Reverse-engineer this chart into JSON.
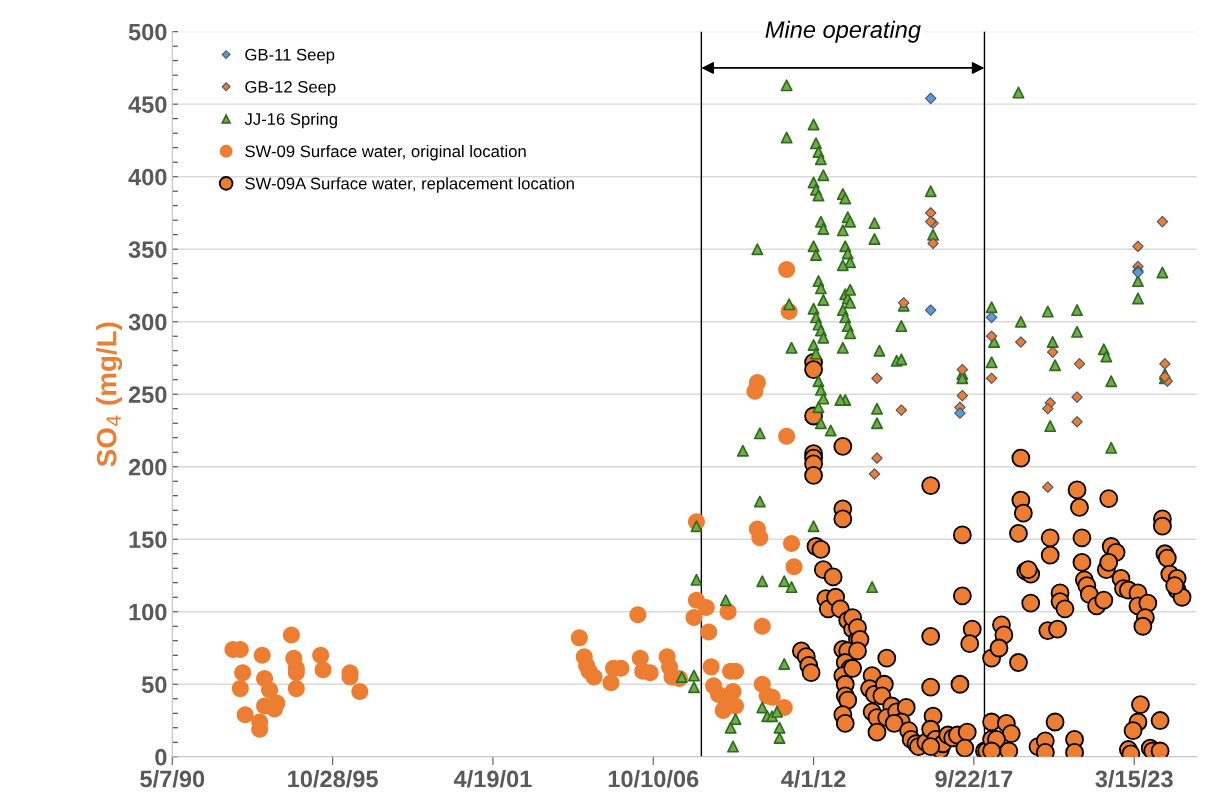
{
  "chart_data": {
    "type": "scatter",
    "ylabel": "SO$_{4}$ (mg/L)",
    "xlim": [
      "1990-05-07",
      "2025-05-01"
    ],
    "xticks": [
      {
        "value": "1990-05-07",
        "label": "5/7/90"
      },
      {
        "value": "1995-10-28",
        "label": "10/28/95"
      },
      {
        "value": "2001-04-19",
        "label": "4/19/01"
      },
      {
        "value": "2006-10-10",
        "label": "10/10/06"
      },
      {
        "value": "2012-04-01",
        "label": "4/1/12"
      },
      {
        "value": "2017-09-22",
        "label": "9/22/17"
      },
      {
        "value": "2023-03-15",
        "label": "3/15/23"
      }
    ],
    "ylim": [
      0,
      500
    ],
    "yticks": [
      0,
      50,
      100,
      150,
      200,
      250,
      300,
      350,
      400,
      450,
      500
    ],
    "grid": "y",
    "legend": "top left",
    "ref_lines": [
      {
        "axis": "x",
        "value": "2008-06",
        "color": "#000000"
      },
      {
        "axis": "x",
        "value": "2018-02",
        "color": "#000000"
      }
    ],
    "annotations": [
      "Mine operating"
    ],
    "series": [
      {
        "name": "GB-11 Seep",
        "color": "#5b9bd5",
        "marker": "diamond",
        "x": [
          "2016-04",
          "2016-04",
          "2017-04",
          "2018-05",
          "2023-05"
        ],
        "values": [
          454,
          308,
          237,
          303,
          334
        ]
      },
      {
        "name": "GB-12 Seep",
        "color": "#ed7d31",
        "marker": "diamond",
        "x": [
          "2016-04",
          "2016-05",
          "2016-04",
          "2016-05",
          "2015-05",
          "2014-06",
          "2015-04",
          "2014-06",
          "2014-05",
          "2017-05",
          "2017-05",
          "2017-04",
          "2018-05",
          "2018-05",
          "2019-05",
          "2020-06",
          "2020-05",
          "2020-04",
          "2020-04",
          "2021-05",
          "2021-04",
          "2021-04",
          "2023-05",
          "2023-05",
          "2023-05",
          "2024-03",
          "2024-04",
          "2024-05",
          "2024-04"
        ],
        "values": [
          375,
          368,
          369,
          354,
          313,
          261,
          239,
          206,
          195,
          267,
          249,
          241,
          290,
          261,
          286,
          279,
          244,
          240,
          186,
          271,
          248,
          231,
          352,
          338,
          335,
          369,
          271,
          259,
          262
        ]
      },
      {
        "name": "JJ-16 Spring",
        "color": "#70ad47",
        "marker": "triangle",
        "x": [
          "2007-10",
          "2008-03",
          "2008-03",
          "2008-04",
          "2008-04",
          "2011-05",
          "2011-05",
          "2010-05",
          "2011-06",
          "2011-07",
          "2010-06",
          "2009-11",
          "2010-06",
          "2010-07",
          "2011-04",
          "2011-07",
          "2011-04",
          "2009-04",
          "2009-06",
          "2009-07",
          "2009-08",
          "2010-07",
          "2010-09",
          "2010-11",
          "2011-01",
          "2011-02",
          "2011-02",
          "2012-04",
          "2012-05",
          "2012-06",
          "2012-07",
          "2012-08",
          "2012-04",
          "2012-05",
          "2012-06",
          "2012-07",
          "2012-08",
          "2012-04",
          "2012-05",
          "2012-06",
          "2012-07",
          "2012-08",
          "2012-04",
          "2012-05",
          "2012-06",
          "2012-07",
          "2012-08",
          "2012-04",
          "2012-05",
          "2012-06",
          "2012-07",
          "2012-08",
          "2012-06",
          "2012-07",
          "2012-04",
          "2013-04",
          "2013-05",
          "2013-06",
          "2013-07",
          "2013-04",
          "2013-05",
          "2013-06",
          "2013-07",
          "2013-04",
          "2013-05",
          "2013-06",
          "2013-07",
          "2013-04",
          "2013-05",
          "2013-06",
          "2013-07",
          "2013-04",
          "2013-05",
          "2013-07",
          "2012-11",
          "2013-03",
          "2014-05",
          "2014-05",
          "2014-07",
          "2014-06",
          "2014-06",
          "2015-05",
          "2015-04",
          "2015-02",
          "2015-04",
          "2016-04",
          "2016-05",
          "2017-05",
          "2017-05",
          "2018-05",
          "2018-06",
          "2018-05",
          "2014-04",
          "2019-04",
          "2019-05",
          "2020-04",
          "2020-06",
          "2020-07",
          "2020-05",
          "2021-04",
          "2021-04",
          "2022-03",
          "2022-04",
          "2022-06",
          "2022-06",
          "2023-05",
          "2023-05",
          "2024-03",
          "2024-04",
          "2024-04"
        ],
        "values": [
          55,
          56,
          48,
          122,
          159,
          463,
          427,
          350,
          312,
          282,
          223,
          211,
          176,
          121,
          121,
          117,
          64,
          108,
          20,
          7,
          26,
          34,
          28,
          28,
          31,
          20,
          13,
          436,
          423,
          417,
          412,
          401,
          396,
          391,
          387,
          369,
          364,
          352,
          346,
          328,
          323,
          315,
          309,
          303,
          298,
          294,
          289,
          284,
          278,
          259,
          253,
          247,
          241,
          230,
          159,
          388,
          385,
          372,
          369,
          363,
          352,
          347,
          341,
          339,
          319,
          316,
          313,
          308,
          303,
          297,
          292,
          282,
          246,
          322,
          225,
          246,
          368,
          357,
          280,
          240,
          230,
          311,
          297,
          273,
          274,
          390,
          360,
          264,
          261,
          310,
          286,
          272,
          117,
          458,
          300,
          307,
          286,
          270,
          228,
          308,
          293,
          281,
          276,
          259,
          213,
          328,
          316,
          334,
          264,
          261
        ]
      },
      {
        "name": "SW-09 Surface water, original location",
        "color": "#ed7d31",
        "marker": "circle",
        "x": [
          "1992-06",
          "1992-09",
          "1992-10",
          "1992-09",
          "1992-11",
          "1993-06",
          "1993-07",
          "1993-05",
          "1993-05",
          "1993-09",
          "1993-07",
          "1993-11",
          "1993-12",
          "1994-06",
          "1994-07",
          "1994-08",
          "1994-08",
          "1994-08",
          "1995-06",
          "1995-07",
          "1996-06",
          "1996-06",
          "1996-10",
          "2004-04",
          "2004-06",
          "2004-07",
          "2004-08",
          "2004-10",
          "2005-05",
          "2005-06",
          "2005-09",
          "2006-04",
          "2006-05",
          "2006-06",
          "2006-09",
          "2007-04",
          "2007-05",
          "2007-06",
          "2007-09",
          "2008-04",
          "2008-04",
          "2008-03",
          "2011-05",
          "2011-06",
          "2010-05",
          "2010-04",
          "2011-05",
          "2010-05",
          "2010-06",
          "2011-07",
          "2011-08",
          "2008-08",
          "2008-09",
          "2009-05",
          "2010-07",
          "2008-10",
          "2009-06",
          "2009-08",
          "2008-11",
          "2009-01",
          "2009-04",
          "2009-03",
          "2009-07",
          "2009-08",
          "2010-07",
          "2010-09",
          "2010-11",
          "2011-04"
        ],
        "values": [
          74,
          74,
          58,
          47,
          29,
          70,
          54,
          24,
          19,
          46,
          35,
          33,
          37,
          84,
          68,
          61,
          58,
          47,
          70,
          60,
          58,
          55,
          45,
          82,
          69,
          63,
          59,
          55,
          51,
          61,
          61,
          98,
          68,
          59,
          58,
          69,
          62,
          55,
          54,
          162,
          108,
          96,
          336,
          307,
          258,
          252,
          221,
          157,
          151,
          147,
          131,
          103,
          86,
          100,
          90,
          62,
          59,
          59,
          49,
          43,
          39,
          32,
          45,
          35,
          50,
          42,
          41,
          34
        ]
      },
      {
        "name": "SW-09A Surface water, replacement location",
        "color": "#ed7d31",
        "marker": "circle_outlined",
        "x": [
          "2012-04",
          "2012-04",
          "2012-04",
          "2012-04",
          "2012-04",
          "2012-04",
          "2012-04",
          "2013-04",
          "2013-04",
          "2013-04",
          "2012-05",
          "2012-07",
          "2012-08",
          "2012-12",
          "2012-09",
          "2012-10",
          "2013-01",
          "2013-03",
          "2013-06",
          "2013-08",
          "2013-10",
          "2011-11",
          "2012-01",
          "2012-02",
          "2012-03",
          "2013-04",
          "2013-06",
          "2013-05",
          "2013-07",
          "2013-04",
          "2013-05",
          "2013-05",
          "2013-06",
          "2013-04",
          "2013-05",
          "2016-04",
          "2017-05",
          "2017-05",
          "2016-04",
          "2016-04",
          "2017-04",
          "2017-09",
          "2017-08",
          "2018-05",
          "2013-08",
          "2013-10",
          "2013-11",
          "2013-10",
          "2013-08",
          "2014-10",
          "2014-04",
          "2014-03",
          "2014-05",
          "2014-09",
          "2014-08",
          "2014-04",
          "2014-06",
          "2014-12",
          "2014-10",
          "2015-02",
          "2015-06",
          "2015-04",
          "2015-01",
          "2015-07",
          "2015-08",
          "2015-10",
          "2015-11",
          "2014-06",
          "2016-02",
          "2016-05",
          "2016-04",
          "2016-06",
          "2016-08",
          "2016-09",
          "2016-11",
          "2017-01",
          "2017-03",
          "2017-07",
          "2017-06",
          "2016-04",
          "2018-02",
          "2018-03",
          "2018-05",
          "2018-05",
          "2019-05",
          "2019-05",
          "2019-06",
          "2019-04",
          "2018-09",
          "2018-10",
          "2018-08",
          "2019-04",
          "2019-07",
          "2019-09",
          "2019-08",
          "2019-09",
          "2020-05",
          "2020-05",
          "2020-04",
          "2020-08",
          "2020-09",
          "2020-09",
          "2020-11",
          "2021-04",
          "2021-05",
          "2021-06",
          "2021-06",
          "2021-07",
          "2021-08",
          "2021-09",
          "2021-12",
          "2022-03",
          "2022-05",
          "2022-06",
          "2022-08",
          "2022-04",
          "2022-05",
          "2022-10",
          "2022-11",
          "2023-01",
          "2023-05",
          "2023-05",
          "2023-09",
          "2023-08",
          "2023-07",
          "2024-03",
          "2024-03",
          "2024-04",
          "2024-05",
          "2024-06",
          "2024-09",
          "2024-09",
          "2024-11",
          "2024-08",
          "2018-11",
          "2019-01",
          "2018-07",
          "2018-05",
          "2018-12",
          "2019-12",
          "2020-03",
          "2020-03",
          "2020-07",
          "2021-03",
          "2021-03",
          "2023-06",
          "2023-05",
          "2023-03",
          "2023-01",
          "2023-02",
          "2024-02",
          "2023-10",
          "2023-11",
          "2024-02"
        ],
        "values": [
          272,
          267,
          235,
          209,
          206,
          202,
          194,
          214,
          171,
          164,
          145,
          143,
          129,
          124,
          109,
          102,
          110,
          102,
          94,
          88,
          81,
          73,
          69,
          63,
          58,
          74,
          73,
          65,
          61,
          56,
          50,
          42,
          39,
          29,
          23,
          187,
          153,
          111,
          83,
          48,
          50,
          88,
          78,
          68,
          96,
          89,
          81,
          73,
          61,
          68,
          56,
          47,
          43,
          50,
          42,
          31,
          27,
          35,
          27,
          31,
          34,
          24,
          23,
          18,
          12,
          9,
          7,
          17,
          10,
          28,
          19,
          12,
          5,
          9,
          15,
          13,
          15,
          17,
          6,
          7,
          4,
          4,
          24,
          12,
          206,
          177,
          168,
          154,
          91,
          84,
          75,
          65,
          128,
          126,
          129,
          106,
          151,
          139,
          87,
          88,
          113,
          107,
          102,
          184,
          172,
          151,
          134,
          122,
          118,
          112,
          104,
          108,
          178,
          145,
          141,
          129,
          134,
          123,
          116,
          115,
          113,
          104,
          106,
          96,
          90,
          164,
          159,
          140,
          137,
          126,
          123,
          115,
          110,
          118,
          23,
          16,
          12,
          4,
          4,
          7,
          11,
          3,
          24,
          12,
          3,
          36,
          24,
          18,
          5,
          2,
          25,
          6,
          4,
          4
        ]
      }
    ]
  }
}
